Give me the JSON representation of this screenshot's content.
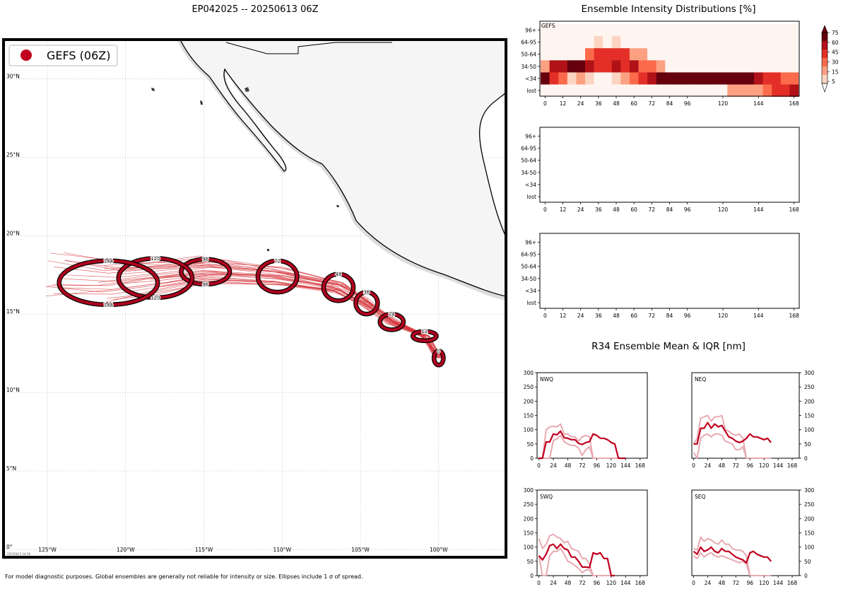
{
  "map": {
    "title": "EP042025 -- 20250613 06Z",
    "legend_label": "GEFS (06Z)",
    "legend_color": "#c0001e",
    "lat_labels": [
      "30°N",
      "25°N",
      "20°N",
      "15°N",
      "10°N",
      "5°N",
      "0°"
    ],
    "lon_labels": [
      "125°W",
      "120°W",
      "115°W",
      "110°W",
      "105°W",
      "100°W"
    ],
    "lon_range": [
      -127.8,
      -95.7
    ],
    "lat_range": [
      -0.5,
      32.5
    ],
    "stamp": "20250613 14:06",
    "footnote": "For model diagnostic purposes. Global ensembles are generally not reliable for intensity or size. Ellipses include 1 σ of spread.",
    "track_color": "#d4343b",
    "ellipse_color": "#b0001e",
    "ellipses": [
      {
        "hour": "0",
        "lon": -100.0,
        "lat": 12.2,
        "w": 0.6,
        "h": 0.9
      },
      {
        "hour": "12",
        "lon": -100.9,
        "lat": 13.6,
        "w": 1.5,
        "h": 0.6
      },
      {
        "hour": "24",
        "lon": -103.0,
        "lat": 14.5,
        "w": 1.5,
        "h": 1.0
      },
      {
        "hour": "36",
        "lon": -104.6,
        "lat": 15.7,
        "w": 1.4,
        "h": 1.4
      },
      {
        "hour": "48",
        "lon": -106.4,
        "lat": 16.7,
        "w": 1.9,
        "h": 1.7
      },
      {
        "hour": "72",
        "lon": -110.3,
        "lat": 17.4,
        "w": 2.5,
        "h": 2.0
      },
      {
        "hour": "96",
        "lon": -114.9,
        "lat": 17.7,
        "w": 3.1,
        "h": 1.6
      },
      {
        "hour": "120",
        "lon": -118.1,
        "lat": 17.3,
        "w": 4.7,
        "h": 2.5
      },
      {
        "hour": "144",
        "lon": -121.1,
        "lat": 17.0,
        "w": 6.3,
        "h": 2.8
      }
    ]
  },
  "heatmap": {
    "title": "Ensemble Intensity Distributions [%]",
    "panel_label": "GEFS",
    "y_labels": [
      "96+",
      "64-95",
      "50-64",
      "34-50",
      "<34",
      "lost"
    ],
    "x_ticks": [
      "0",
      "12",
      "24",
      "36",
      "48",
      "60",
      "72",
      "84",
      "96",
      "120",
      "144",
      "168"
    ],
    "colorbar_ticks": [
      "75",
      "60",
      "45",
      "30",
      "15",
      "5"
    ],
    "colors": [
      "#fff5f0",
      "#fdd4c2",
      "#fca082",
      "#fb6b4b",
      "#e32f27",
      "#b11218",
      "#67000d"
    ]
  },
  "chart_data": [
    {
      "type": "heatmap",
      "title": "Ensemble Intensity Distributions [%]",
      "panel": "GEFS",
      "x": [
        0,
        6,
        12,
        18,
        24,
        30,
        36,
        42,
        48,
        54,
        60,
        66,
        72,
        78,
        84,
        90,
        96,
        102,
        108,
        114,
        120,
        126,
        132,
        138,
        144,
        150,
        156,
        162,
        168
      ],
      "y": [
        "96+",
        "64-95",
        "50-64",
        "34-50",
        "<34",
        "lost"
      ],
      "values": {
        "96+": [
          0,
          0,
          0,
          0,
          0,
          0,
          0,
          0,
          0,
          0,
          0,
          0,
          0,
          0,
          0,
          0,
          0,
          0,
          0,
          0,
          0,
          0,
          0,
          0,
          0,
          0,
          0,
          0,
          0
        ],
        "64-95": [
          0,
          0,
          0,
          0,
          0,
          0,
          5,
          0,
          5,
          0,
          0,
          0,
          0,
          0,
          0,
          0,
          0,
          0,
          0,
          0,
          0,
          0,
          0,
          0,
          0,
          0,
          0,
          0,
          0
        ],
        "50-64": [
          0,
          0,
          0,
          0,
          0,
          30,
          45,
          55,
          45,
          45,
          15,
          15,
          0,
          0,
          0,
          0,
          0,
          0,
          0,
          0,
          0,
          0,
          0,
          0,
          0,
          0,
          0,
          0,
          0
        ],
        "34-50": [
          25,
          60,
          70,
          80,
          80,
          65,
          45,
          45,
          70,
          55,
          65,
          40,
          30,
          15,
          0,
          0,
          0,
          0,
          0,
          0,
          0,
          0,
          0,
          0,
          0,
          0,
          0,
          0,
          0
        ],
        "<34": [
          80,
          50,
          30,
          10,
          20,
          10,
          0,
          0,
          5,
          15,
          35,
          55,
          70,
          80,
          80,
          80,
          80,
          80,
          80,
          80,
          80,
          80,
          80,
          80,
          60,
          55,
          55,
          40,
          40
        ],
        "lost": [
          0,
          0,
          0,
          0,
          0,
          0,
          0,
          0,
          0,
          0,
          0,
          0,
          0,
          0,
          0,
          0,
          0,
          0,
          0,
          0,
          0,
          15,
          15,
          25,
          25,
          40,
          55,
          55,
          70
        ]
      }
    },
    {
      "type": "heatmap",
      "title": "",
      "panel": "",
      "x": [],
      "y": [
        "96+",
        "64-95",
        "50-64",
        "34-50",
        "<34",
        "lost"
      ],
      "values": {}
    },
    {
      "type": "heatmap",
      "title": "",
      "panel": "",
      "x": [],
      "y": [
        "96+",
        "64-95",
        "50-64",
        "34-50",
        "<34",
        "lost"
      ],
      "values": {}
    },
    {
      "type": "line",
      "title": "R34 Ensemble Mean & IQR [nm]",
      "panel": "NWQ",
      "xlim": [
        -3,
        180
      ],
      "ylim": [
        0,
        300
      ],
      "x_ticks": [
        0,
        24,
        48,
        72,
        96,
        120,
        144,
        168
      ],
      "y_ticks": [
        0,
        50,
        100,
        150,
        200,
        250,
        300
      ],
      "x": [
        0,
        6,
        12,
        18,
        24,
        30,
        36,
        42,
        48,
        54,
        60,
        66,
        72,
        78,
        84,
        90,
        96,
        102,
        108,
        114,
        120,
        126,
        132,
        138,
        144
      ],
      "mean": [
        0,
        0,
        57,
        57,
        85,
        82,
        95,
        72,
        70,
        65,
        65,
        52,
        48,
        55,
        58,
        85,
        80,
        70,
        70,
        65,
        55,
        50,
        0,
        0,
        0
      ],
      "q25": [
        0,
        0,
        0,
        0,
        62,
        68,
        80,
        58,
        50,
        45,
        45,
        35,
        10,
        30,
        40,
        0,
        0,
        0,
        0,
        0,
        0,
        0,
        0,
        0,
        0
      ],
      "q75": [
        0,
        0,
        100,
        110,
        112,
        110,
        120,
        85,
        85,
        75,
        75,
        60,
        75,
        80,
        75,
        0,
        0,
        0,
        0,
        0,
        0,
        0,
        0,
        0,
        0
      ]
    },
    {
      "type": "line",
      "panel": "NEQ",
      "xlim": [
        -3,
        180
      ],
      "ylim": [
        0,
        300
      ],
      "x_ticks": [
        0,
        24,
        48,
        72,
        96,
        120,
        144,
        168
      ],
      "y_ticks": [
        0,
        50,
        100,
        150,
        200,
        250,
        300
      ],
      "x": [
        0,
        6,
        12,
        18,
        24,
        30,
        36,
        42,
        48,
        54,
        60,
        66,
        72,
        78,
        84,
        90,
        96,
        102,
        108,
        114,
        120,
        126,
        132
      ],
      "mean": [
        50,
        50,
        105,
        105,
        125,
        105,
        120,
        110,
        115,
        95,
        75,
        70,
        60,
        55,
        60,
        70,
        85,
        75,
        75,
        70,
        65,
        70,
        55
      ],
      "q25": [
        20,
        0,
        70,
        80,
        85,
        75,
        85,
        85,
        80,
        60,
        55,
        50,
        30,
        30,
        40,
        0,
        0,
        0,
        0,
        0,
        0,
        0,
        0
      ],
      "q75": [
        50,
        70,
        140,
        145,
        150,
        130,
        145,
        145,
        150,
        100,
        95,
        85,
        80,
        85,
        70,
        0,
        0,
        0,
        0,
        0,
        0,
        0,
        0
      ]
    },
    {
      "type": "line",
      "panel": "SWQ",
      "xlim": [
        -3,
        180
      ],
      "ylim": [
        0,
        300
      ],
      "x_ticks": [
        0,
        24,
        48,
        72,
        96,
        120,
        144,
        168
      ],
      "y_ticks": [
        0,
        50,
        100,
        150,
        200,
        250,
        300
      ],
      "x": [
        0,
        6,
        12,
        18,
        24,
        30,
        36,
        42,
        48,
        54,
        60,
        66,
        72,
        78,
        84,
        90,
        96,
        102,
        108,
        114,
        120,
        126
      ],
      "mean": [
        70,
        55,
        75,
        105,
        110,
        95,
        110,
        95,
        90,
        65,
        65,
        50,
        30,
        30,
        28,
        80,
        75,
        80,
        60,
        60,
        0,
        0
      ],
      "q25": [
        70,
        0,
        0,
        70,
        85,
        85,
        95,
        75,
        50,
        45,
        35,
        25,
        10,
        20,
        20,
        0,
        0,
        0,
        0,
        0,
        0,
        0
      ],
      "q75": [
        130,
        95,
        110,
        140,
        145,
        135,
        130,
        115,
        120,
        95,
        90,
        85,
        60,
        60,
        40,
        0,
        0,
        0,
        0,
        0,
        0,
        0
      ]
    },
    {
      "type": "line",
      "panel": "SEQ",
      "xlim": [
        -3,
        180
      ],
      "ylim": [
        0,
        300
      ],
      "x_ticks": [
        0,
        24,
        48,
        72,
        96,
        120,
        144,
        168
      ],
      "y_ticks": [
        0,
        50,
        100,
        150,
        200,
        250,
        300
      ],
      "x": [
        0,
        6,
        12,
        18,
        24,
        30,
        36,
        42,
        48,
        54,
        60,
        66,
        72,
        78,
        84,
        90,
        96,
        102,
        108,
        114,
        120,
        126,
        132
      ],
      "mean": [
        85,
        75,
        100,
        85,
        90,
        100,
        85,
        80,
        95,
        85,
        85,
        75,
        65,
        60,
        55,
        45,
        80,
        85,
        75,
        70,
        65,
        65,
        50
      ],
      "q25": [
        70,
        60,
        80,
        65,
        75,
        80,
        70,
        65,
        70,
        65,
        60,
        55,
        50,
        45,
        50,
        40,
        0,
        0,
        0,
        0,
        0,
        0,
        0
      ],
      "q75": [
        95,
        90,
        135,
        120,
        130,
        125,
        115,
        110,
        125,
        110,
        110,
        95,
        90,
        90,
        85,
        70,
        0,
        0,
        0,
        0,
        0,
        0,
        0
      ]
    }
  ],
  "r34": {
    "title": "R34 Ensemble Mean & IQR [nm]",
    "mean_color": "#c0001e",
    "iqr_color": "#e8a9b1"
  }
}
